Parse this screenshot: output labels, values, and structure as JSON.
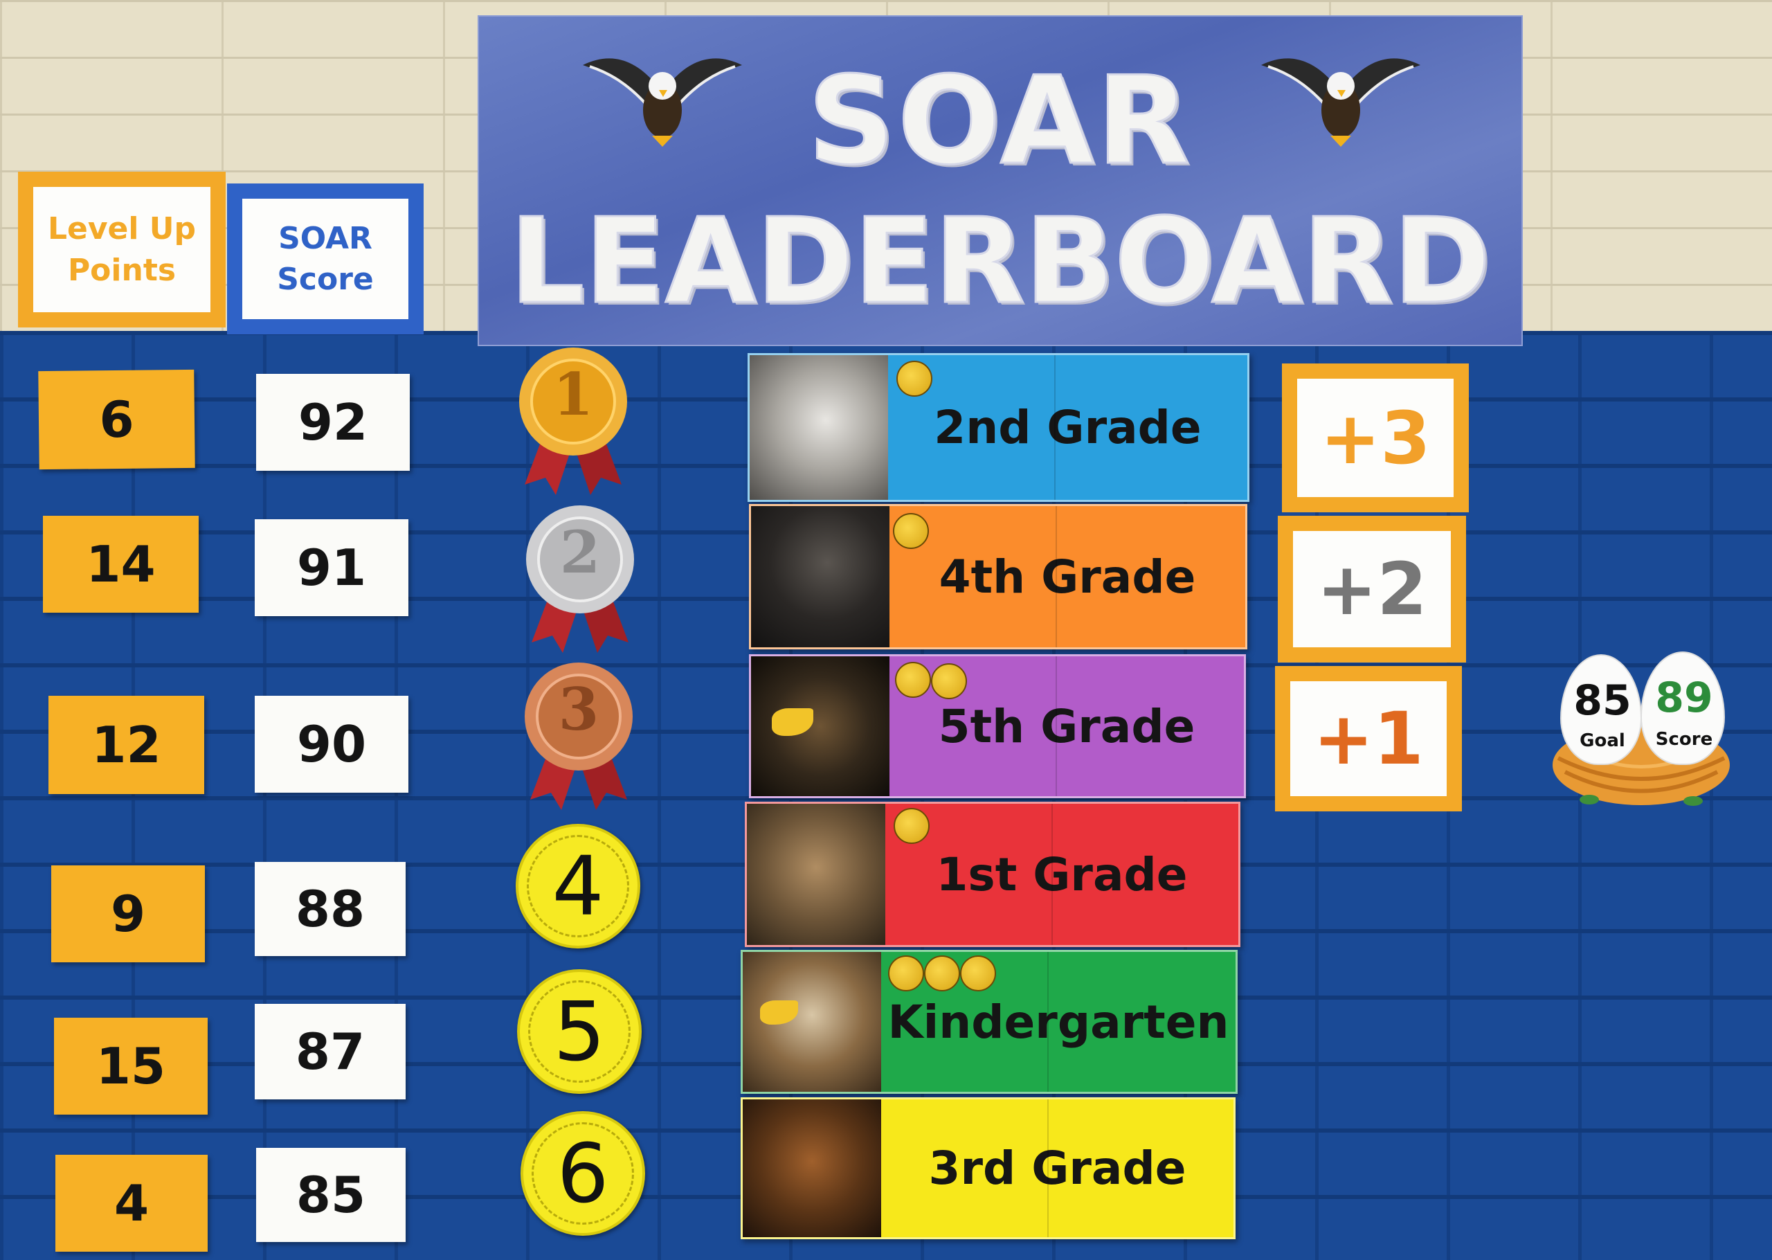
{
  "banner": {
    "line1": "SOAR",
    "line2": "LEADERBOARD"
  },
  "headers": {
    "level_up": "Level Up Points",
    "soar_score": "SOAR Score"
  },
  "rows": [
    {
      "level_up": "6",
      "score": "92",
      "place": "1",
      "grade": "2nd Grade",
      "color": "#2aa0de",
      "stickers": 1
    },
    {
      "level_up": "14",
      "score": "91",
      "place": "2",
      "grade": "4th Grade",
      "color": "#fb8c2c",
      "stickers": 1
    },
    {
      "level_up": "12",
      "score": "90",
      "place": "3",
      "grade": "5th Grade",
      "color": "#b25cc9",
      "stickers": 2
    },
    {
      "level_up": "9",
      "score": "88",
      "place": "4",
      "grade": "1st Grade",
      "color": "#e9333a",
      "stickers": 1
    },
    {
      "level_up": "15",
      "score": "87",
      "place": "5",
      "grade": "Kindergarten",
      "color": "#1fa94a",
      "stickers": 3
    },
    {
      "level_up": "4",
      "score": "85",
      "place": "6",
      "grade": "3rd Grade",
      "color": "#f7e81b",
      "stickers": 0
    }
  ],
  "bonus": [
    {
      "label": "+3",
      "color": "#f2a02a"
    },
    {
      "label": "+2",
      "color": "#777777"
    },
    {
      "label": "+1",
      "color": "#e0691f"
    }
  ],
  "nest": {
    "goal_value": "85",
    "goal_label": "Goal",
    "score_value": "89",
    "score_label": "Score"
  },
  "medal_colors": {
    "gold": "#e9a21c",
    "silver": "#b9b9bb",
    "bronze": "#c2703f",
    "ribbon": "#b8282c"
  },
  "icons": [
    "eagle-clipart-icon",
    "gold-medal-icon",
    "silver-medal-icon",
    "bronze-medal-icon",
    "eagle-photo-icon",
    "eagles-sticker-icon",
    "nest-icon"
  ]
}
